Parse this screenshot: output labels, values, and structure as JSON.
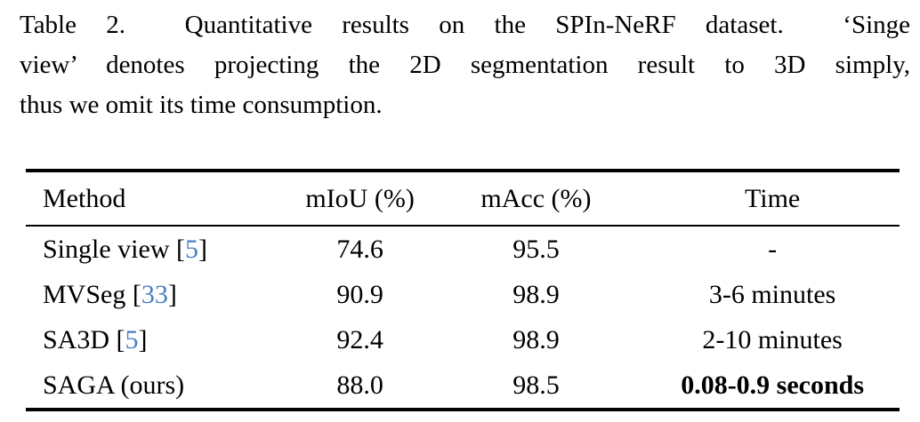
{
  "page": {
    "background_color": "#ffffff",
    "text_color": "#000000",
    "citation_color": "#4a80c2"
  },
  "caption": {
    "label": "Table 2.",
    "lines": [
      "Table 2.  Quantitative results on the SPIn-NeRF dataset.  ‘Singe",
      "view’ denotes projecting the 2D segmentation result to 3D simply,",
      "thus we omit its time consumption."
    ]
  },
  "table": {
    "columns": [
      "Method",
      "mIoU (%)",
      "mAcc (%)",
      "Time"
    ],
    "rows": [
      {
        "method_pre": "Single view [",
        "method_cite": "5",
        "method_post": "]",
        "miou": "74.6",
        "macc": "95.5",
        "time": "-",
        "time_bold": false
      },
      {
        "method_pre": "MVSeg [",
        "method_cite": "33",
        "method_post": "]",
        "miou": "90.9",
        "macc": "98.9",
        "time": "3-6 minutes",
        "time_bold": false
      },
      {
        "method_pre": "SA3D [",
        "method_cite": "5",
        "method_post": "]",
        "miou": "92.4",
        "macc": "98.9",
        "time": "2-10 minutes",
        "time_bold": false
      },
      {
        "method_pre": "SAGA (ours)",
        "method_cite": "",
        "method_post": "",
        "miou": "88.0",
        "macc": "98.5",
        "time": "0.08-0.9 seconds",
        "time_bold": true
      }
    ]
  }
}
